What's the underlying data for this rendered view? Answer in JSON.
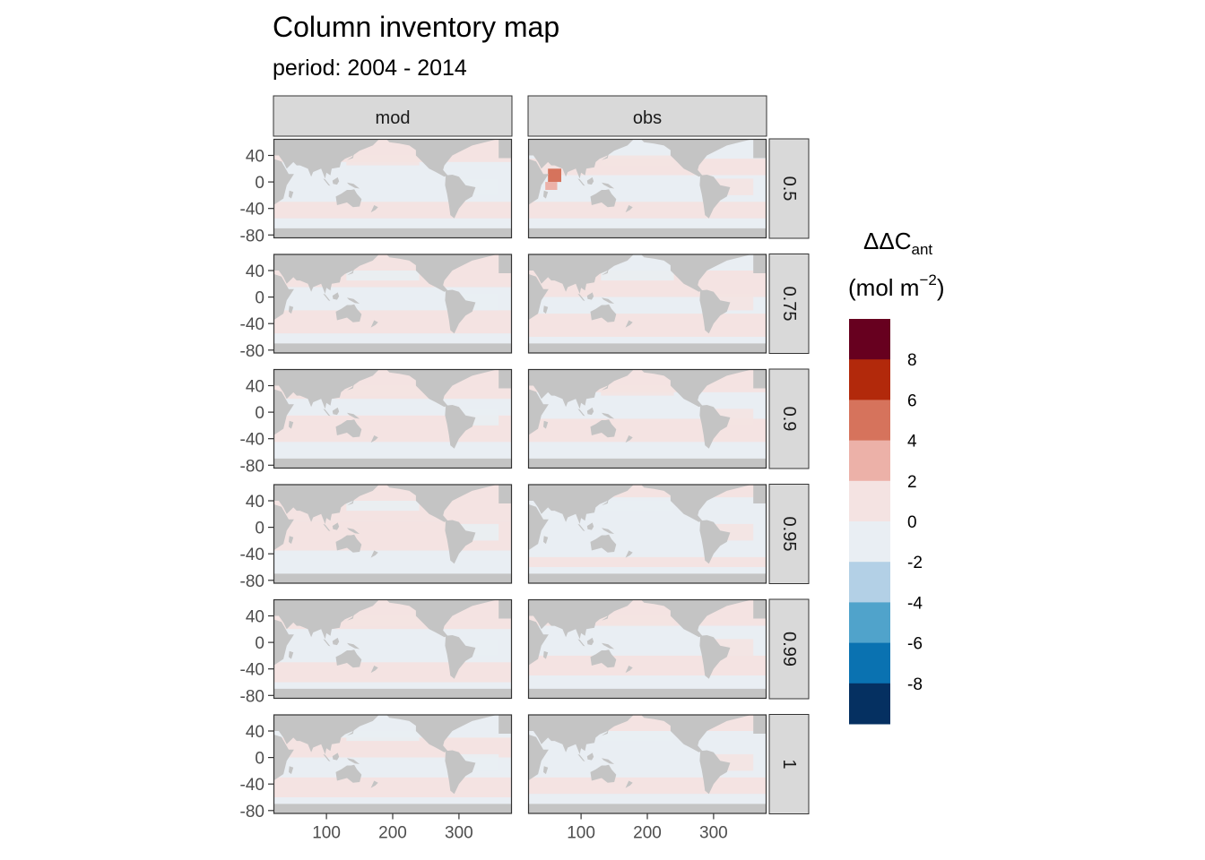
{
  "chart_data": {
    "type": "heatmap",
    "title": "Column inventory map",
    "subtitle": "period: 2004 - 2014",
    "facet_columns": [
      "mod",
      "obs"
    ],
    "facet_rows": [
      "0.5",
      "0.75",
      "0.9",
      "0.95",
      "0.99",
      "1"
    ],
    "x": {
      "ticks": [
        100,
        200,
        300
      ],
      "tick_labels": [
        "100",
        "200",
        "300"
      ],
      "range": [
        20,
        380
      ]
    },
    "y": {
      "ticks": [
        40,
        0,
        -40,
        -80
      ],
      "tick_labels": [
        "40",
        "0",
        "-40",
        "-80"
      ],
      "range": [
        -85,
        65
      ]
    },
    "legend": {
      "title_main": "ΔΔC",
      "title_sub": "ant",
      "unit_open": "(mol m",
      "unit_sup": "−2",
      "unit_close": ")",
      "placement": "right",
      "bins": [
        {
          "range": [
            8,
            10
          ],
          "color": "#67001f"
        },
        {
          "range": [
            6,
            8
          ],
          "color": "#b2290b"
        },
        {
          "range": [
            4,
            6
          ],
          "color": "#d6735c"
        },
        {
          "range": [
            2,
            4
          ],
          "color": "#ecb1a8"
        },
        {
          "range": [
            0,
            2
          ],
          "color": "#f4e3e2"
        },
        {
          "range": [
            -2,
            0
          ],
          "color": "#e9eef3"
        },
        {
          "range": [
            -4,
            -2
          ],
          "color": "#b3d0e6"
        },
        {
          "range": [
            -6,
            -4
          ],
          "color": "#50a3cb"
        },
        {
          "range": [
            -8,
            -6
          ],
          "color": "#0a72b1"
        },
        {
          "range": [
            -10,
            -8
          ],
          "color": "#053061"
        }
      ],
      "break_labels": [
        "8",
        "6",
        "4",
        "2",
        "0",
        "-2",
        "-4",
        "-6",
        "-8"
      ]
    },
    "colors": {
      "land": "#c4c4c4",
      "ocean_negative": "#e9eef3",
      "ocean_positive": "#f4e3e2",
      "strip_fill": "#d9d9d9",
      "frame": "#333333"
    },
    "panels": [
      {
        "col": "mod",
        "row": "0.5"
      },
      {
        "col": "obs",
        "row": "0.5",
        "hotspot": {
          "lon": 60,
          "lat": 8,
          "value": 5
        }
      },
      {
        "col": "mod",
        "row": "0.75"
      },
      {
        "col": "obs",
        "row": "0.75"
      },
      {
        "col": "mod",
        "row": "0.9"
      },
      {
        "col": "obs",
        "row": "0.9"
      },
      {
        "col": "mod",
        "row": "0.95"
      },
      {
        "col": "obs",
        "row": "0.95"
      },
      {
        "col": "mod",
        "row": "0.99"
      },
      {
        "col": "obs",
        "row": "0.99"
      },
      {
        "col": "mod",
        "row": "1"
      },
      {
        "col": "obs",
        "row": "1"
      }
    ]
  }
}
